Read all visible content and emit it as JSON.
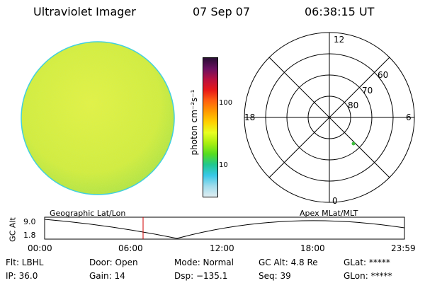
{
  "header": {
    "title": "Ultraviolet Imager",
    "date": "07 Sep 07",
    "time": "06:38:15 UT"
  },
  "colorbar": {
    "label": "photon cm⁻²s⁻¹",
    "ticks": [
      "100",
      "10"
    ],
    "colors": [
      "#2a0d35",
      "#6a1060",
      "#b81040",
      "#e81818",
      "#ff6010",
      "#ff9a00",
      "#ffd000",
      "#e8ff20",
      "#a8ee10",
      "#55dd20",
      "#20c890",
      "#38c8e8",
      "#a0dcec",
      "#e0eef2"
    ]
  },
  "globe": {
    "fill_color": "#dcef3c",
    "edge_color": "#40d0e0"
  },
  "polar_plot": {
    "mlt_labels": [
      "12",
      "18",
      "6",
      "0"
    ],
    "lat_labels": [
      "60",
      "70",
      "80"
    ]
  },
  "timeline": {
    "left_caption": "Geographic Lat/Lon",
    "right_caption": "Apex  MLat/MLT",
    "axis_title": "GC Alt",
    "y_labels": [
      "9.0",
      "1.8"
    ],
    "time_ticks": [
      "00:00",
      "06:00",
      "12:00",
      "18:00",
      "23:59"
    ]
  },
  "status": {
    "filter": "Flt: LBHL",
    "ip": "IP: 36.0",
    "door": "Door: Open",
    "gain": "Gain: 14",
    "mode": "Mode: Normal",
    "dsp": "Dsp: −135.1",
    "gc_alt": "GC Alt: 4.8 Re",
    "seq": "Seq: 39",
    "glat": "GLat: *****",
    "glon": "GLon: *****"
  }
}
